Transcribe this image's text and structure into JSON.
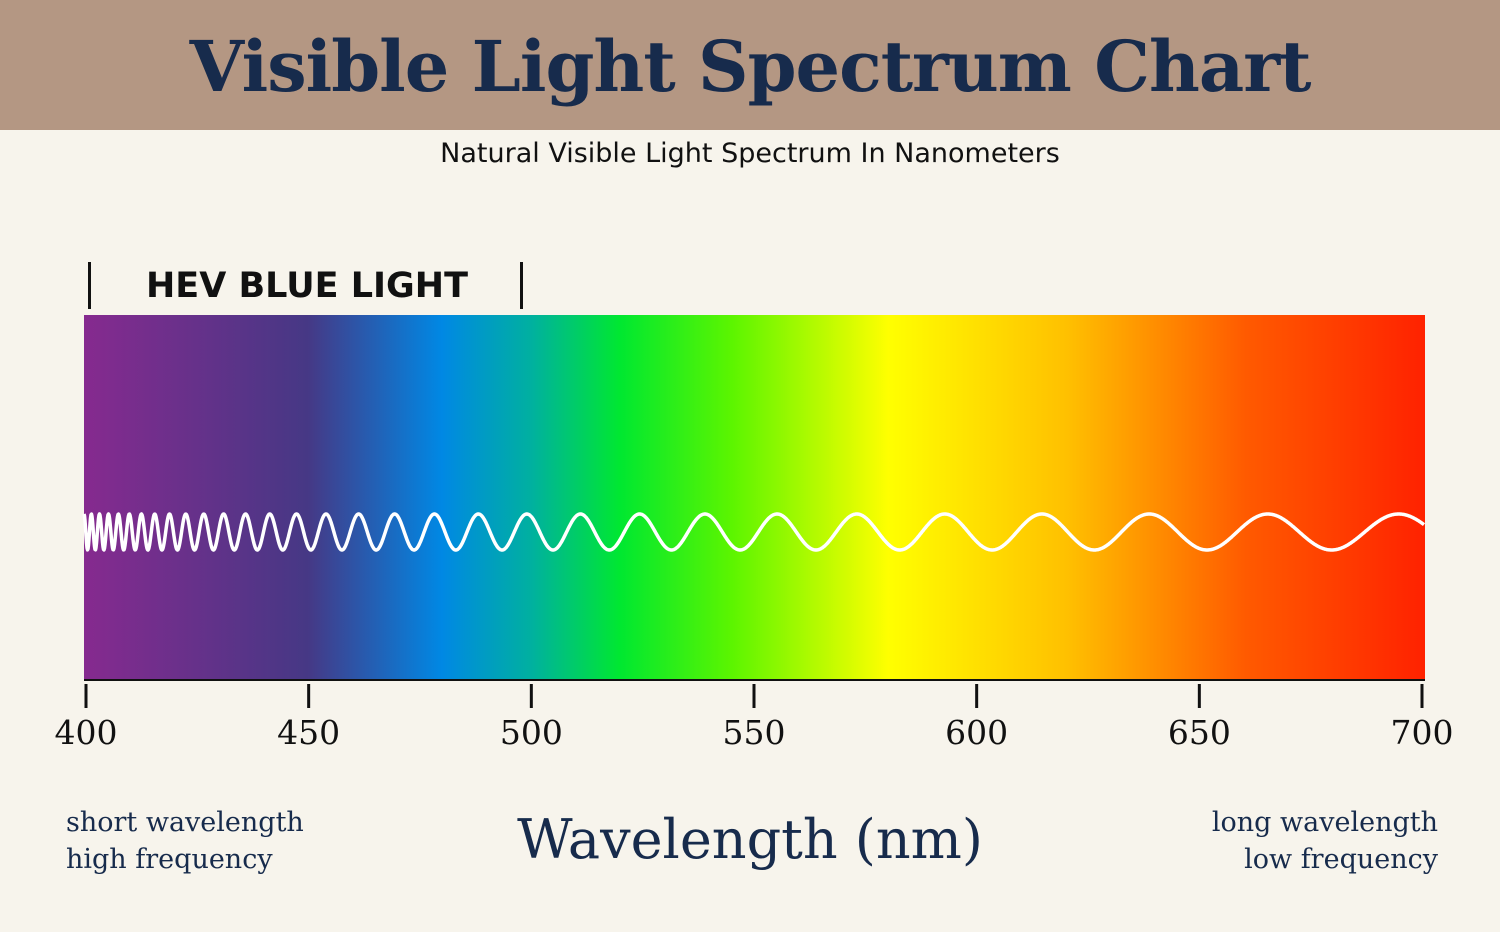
{
  "header": {
    "title": "Visible Light Spectrum Chart",
    "subtitle": "Natural Visible Light Spectrum In Nanometers",
    "band_color": "#b49783"
  },
  "hev": {
    "label": "HEV BLUE LIGHT",
    "range_nm": [
      400,
      500
    ]
  },
  "chart_data": {
    "type": "other",
    "title": "Visible Light Spectrum Chart",
    "xlabel": "Wavelength (nm)",
    "xlim": [
      400,
      700
    ],
    "ticks": [
      "400",
      "450",
      "500",
      "550",
      "600",
      "650",
      "700"
    ],
    "tick_values": [
      400,
      450,
      500,
      550,
      600,
      650,
      700
    ],
    "gradient_stops": [
      {
        "nm": 400,
        "color": "#862a8f"
      },
      {
        "nm": 450,
        "color": "#463885"
      },
      {
        "nm": 480,
        "color": "#0088e4"
      },
      {
        "nm": 500,
        "color": "#00b0a0"
      },
      {
        "nm": 520,
        "color": "#00e830"
      },
      {
        "nm": 545,
        "color": "#5cf500"
      },
      {
        "nm": 580,
        "color": "#ffff00"
      },
      {
        "nm": 620,
        "color": "#ffc000"
      },
      {
        "nm": 660,
        "color": "#ff5a00"
      },
      {
        "nm": 700,
        "color": "#ff2200"
      }
    ],
    "wave_color": "#ffffff"
  },
  "notes": {
    "left_line1": "short wavelength",
    "left_line2": "high frequency",
    "right_line1": "long wavelength",
    "right_line2": "low frequency"
  },
  "colors": {
    "title_text": "#172b4c",
    "background": "#f7f4ec"
  }
}
